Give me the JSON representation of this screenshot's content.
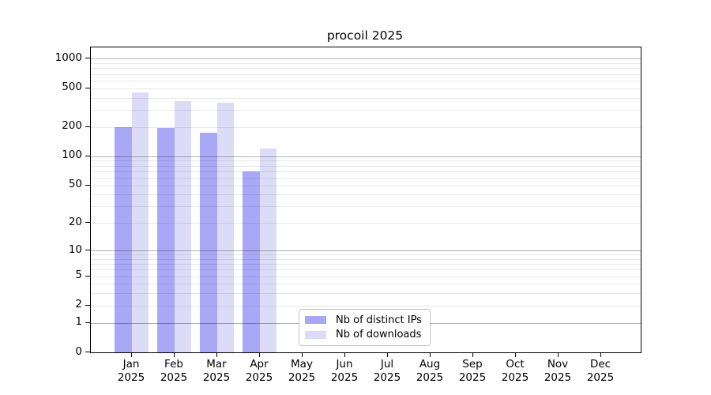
{
  "title": "procoil 2025",
  "chart_data": {
    "type": "bar",
    "title": "procoil 2025",
    "xlabel": "",
    "ylabel": "",
    "y_scale": "log1p",
    "ylim": [
      0,
      1000
    ],
    "y_tick_values": [
      0,
      1,
      2,
      5,
      10,
      20,
      50,
      100,
      200,
      500,
      1000
    ],
    "grid": "horizontal, minor log lines light gray, decade lines darker, drawn over bars",
    "categories": [
      "Jan",
      "Feb",
      "Mar",
      "Apr",
      "May",
      "Jun",
      "Jul",
      "Aug",
      "Sep",
      "Oct",
      "Nov",
      "Dec"
    ],
    "x_tick_second_line": "2025",
    "series": [
      {
        "name": "Nb of distinct IPs",
        "color": "#a8a8f7",
        "values": [
          200,
          197,
          175,
          70,
          0,
          0,
          0,
          0,
          0,
          0,
          0,
          0
        ]
      },
      {
        "name": "Nb of downloads",
        "color": "#dcdcf9",
        "values": [
          450,
          368,
          358,
          120,
          0,
          0,
          0,
          0,
          0,
          0,
          0,
          0
        ]
      }
    ],
    "legend": {
      "position": "lower center inside plot",
      "entries": [
        "Nb of distinct IPs",
        "Nb of downloads"
      ]
    }
  },
  "colors": {
    "background": "#ffffff",
    "bar_distinct_ips": "#a8a8f7",
    "bar_downloads": "#dcdcf9",
    "grid_minor": "#e9e9e9",
    "grid_major": "#b3b3b3",
    "axis": "#000000",
    "legend_border": "#c3c3c3"
  }
}
